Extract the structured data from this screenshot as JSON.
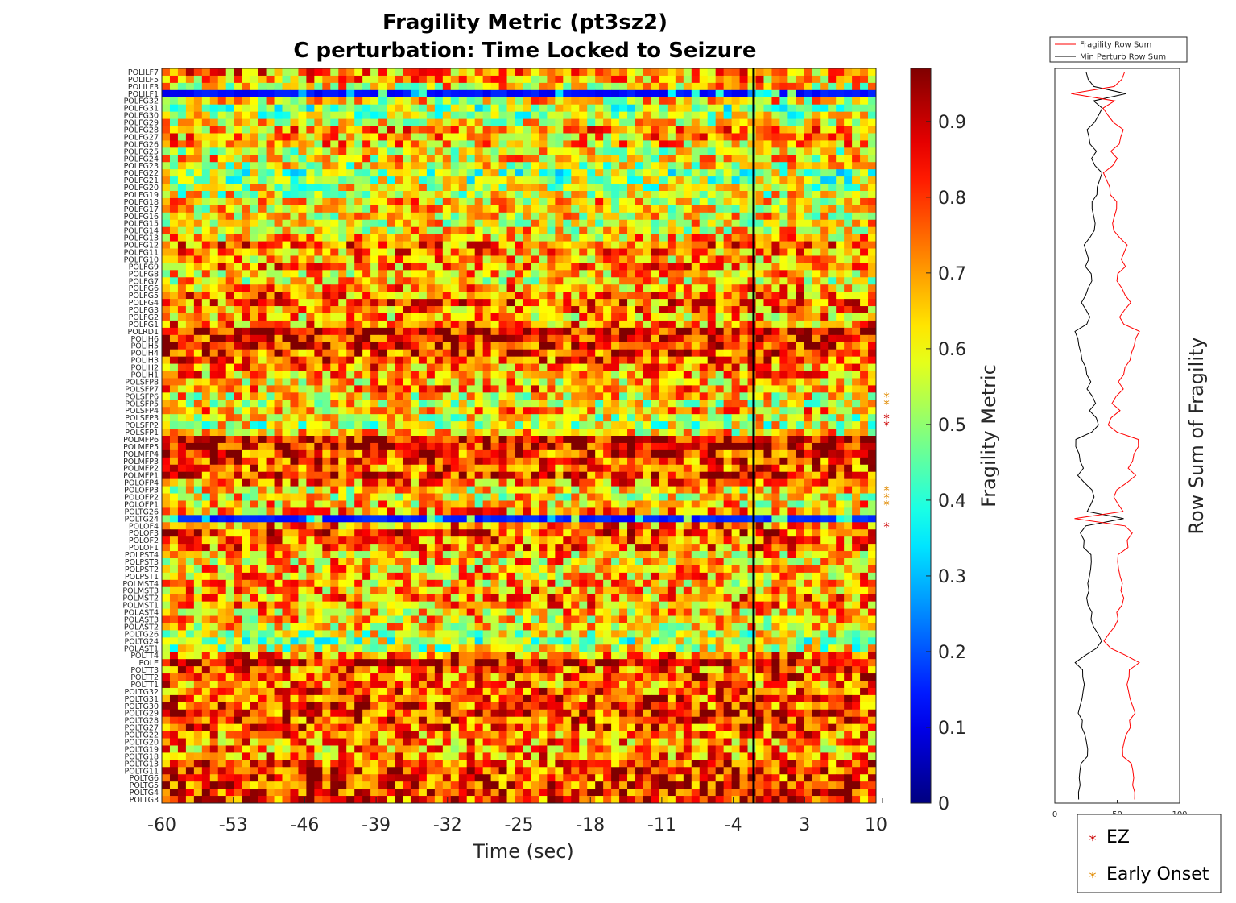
{
  "title_line1": "Fragility Metric (pt3sz2)",
  "title_line2": "C perturbation:  Time Locked to Seizure",
  "chart_data": [
    {
      "type": "heatmap",
      "xlabel": "Time (sec)",
      "x_ticks": [
        "-60",
        "-53",
        "-46",
        "-39",
        "-32",
        "-25",
        "-18",
        "-11",
        "-4",
        "3",
        "10"
      ],
      "xlim": [
        -60,
        10
      ],
      "seizure_onset_line": -2,
      "n_time_windows": 89,
      "colorbar": {
        "label": "Fragility Metric",
        "ticks": [
          "0",
          "0.1",
          "0.2",
          "0.3",
          "0.4",
          "0.5",
          "0.6",
          "0.7",
          "0.8",
          "0.9"
        ],
        "range": [
          0,
          0.97
        ],
        "colormap": "jet"
      },
      "channels": [
        "POLILF7",
        "POLILF5",
        "POLILF3",
        "POLILF1",
        "POLFG32",
        "POLFG31",
        "POLFG30",
        "POLFG29",
        "POLFG28",
        "POLFG27",
        "POLFG26",
        "POLFG25",
        "POLFG24",
        "POLFG23",
        "POLFG22",
        "POLFG21",
        "POLFG20",
        "POLFG19",
        "POLFG18",
        "POLFG17",
        "POLFG16",
        "POLFG15",
        "POLFG14",
        "POLFG13",
        "POLFG12",
        "POLFG11",
        "POLFG10",
        "POLFG9",
        "POLFG8",
        "POLFG7",
        "POLFG6",
        "POLFG5",
        "POLFG4",
        "POLFG3",
        "POLFG2",
        "POLFG1",
        "POLRD1",
        "POLIH6",
        "POLIH5",
        "POLIH4",
        "POLIH3",
        "POLIH2",
        "POLIH1",
        "POLSFP8",
        "POLSFP7",
        "POLSFP6",
        "POLSFP5",
        "POLSFP4",
        "POLSFP3",
        "POLSFP2",
        "POLSFP1",
        "POLMFP6",
        "POLMFP5",
        "POLMFP4",
        "POLMFP3",
        "POLMFP2",
        "POLMFP1",
        "POLOFP4",
        "POLOFP3",
        "POLOFP2",
        "POLOFP1",
        "POLTG26",
        "POLTG24",
        "POLOF4",
        "POLOF3",
        "POLOF2",
        "POLOF1",
        "POLPST4",
        "POLPST3",
        "POLPST2",
        "POLPST1",
        "POLMST4",
        "POLMST3",
        "POLMST2",
        "POLMST1",
        "POLAST4",
        "POLAST3",
        "POLAST2",
        "POLTG26",
        "POLTG24",
        "POLAST1",
        "POLTT4",
        "POLE",
        "POLTT3",
        "POLTT2",
        "POLTT1",
        "POLTG32",
        "POLTG31",
        "POLTG30",
        "POLTG29",
        "POLTG28",
        "POLTG27",
        "POLTG22",
        "POLTG20",
        "POLTG19",
        "POLTG18",
        "POLTG13",
        "POLTG11",
        "POLTG6",
        "POLTG5",
        "POLTG4",
        "POLTG3"
      ],
      "row_baseline": [
        0.72,
        0.68,
        0.62,
        0.1,
        0.62,
        0.52,
        0.55,
        0.6,
        0.7,
        0.68,
        0.66,
        0.6,
        0.62,
        0.58,
        0.5,
        0.52,
        0.56,
        0.58,
        0.64,
        0.62,
        0.62,
        0.6,
        0.62,
        0.64,
        0.76,
        0.72,
        0.68,
        0.72,
        0.66,
        0.62,
        0.7,
        0.74,
        0.76,
        0.72,
        0.68,
        0.72,
        0.88,
        0.86,
        0.84,
        0.8,
        0.78,
        0.72,
        0.7,
        0.66,
        0.72,
        0.62,
        0.6,
        0.66,
        0.58,
        0.56,
        0.62,
        0.9,
        0.88,
        0.82,
        0.8,
        0.76,
        0.82,
        0.74,
        0.62,
        0.62,
        0.64,
        0.7,
        0.12,
        0.74,
        0.8,
        0.74,
        0.74,
        0.66,
        0.66,
        0.66,
        0.68,
        0.66,
        0.68,
        0.72,
        0.7,
        0.66,
        0.64,
        0.62,
        0.56,
        0.52,
        0.56,
        0.74,
        0.88,
        0.76,
        0.78,
        0.74,
        0.76,
        0.78,
        0.8,
        0.8,
        0.8,
        0.78,
        0.74,
        0.72,
        0.7,
        0.72,
        0.78,
        0.82,
        0.8,
        0.82,
        0.84,
        0.8
      ],
      "ez_channels": [
        "POLSFP3",
        "POLSFP2",
        "POLOF4"
      ],
      "early_onset_channels": [
        "POLSFP6",
        "POLSFP5",
        "POLOFP3",
        "POLOFP2",
        "POLOFP1"
      ]
    },
    {
      "type": "line",
      "ylabel": "Row Sum of Fragility",
      "x_ticks": [
        "0",
        "50",
        "100"
      ],
      "xlim": [
        0,
        100
      ],
      "orientation": "vertical (channels along y)",
      "series": [
        {
          "name": "Fragility Row Sum",
          "color": "#ff0000"
        },
        {
          "name": "Min Perturb Row Sum",
          "color": "#000000"
        }
      ]
    }
  ],
  "marker_legend": {
    "items": [
      {
        "label": "EZ",
        "color": "#cc0000"
      },
      {
        "label": "Early Onset",
        "color": "#e08a00"
      }
    ]
  }
}
